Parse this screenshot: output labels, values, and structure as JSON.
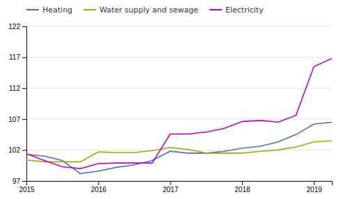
{
  "chart_data": {
    "type": "line",
    "categories": [
      "2015",
      null,
      null,
      null,
      "2016",
      null,
      null,
      null,
      "2017",
      null,
      null,
      null,
      "2018",
      null,
      null,
      null,
      "2019",
      null
    ],
    "series": [
      {
        "name": "Heating",
        "color": "#4472c4",
        "values": [
          101.3,
          101.0,
          100.3,
          98.2,
          98.6,
          99.2,
          99.6,
          100.3,
          101.8,
          101.5,
          101.5,
          101.8,
          102.3,
          102.6,
          103.3,
          104.5,
          106.2,
          106.5
        ]
      },
      {
        "name": "Water supply and sewage",
        "color": "#a0a800",
        "values": [
          100.4,
          100.1,
          100.1,
          100.1,
          101.7,
          101.6,
          101.6,
          101.9,
          102.4,
          102.1,
          101.5,
          101.5,
          101.5,
          101.8,
          102.0,
          102.5,
          103.3,
          103.5
        ]
      },
      {
        "name": "Electricity",
        "color": "#c000c0",
        "values": [
          101.4,
          100.3,
          99.3,
          99.0,
          99.8,
          99.9,
          99.9,
          99.9,
          104.6,
          104.6,
          104.9,
          105.5,
          106.6,
          106.8,
          106.5,
          107.6,
          115.5,
          116.8
        ]
      }
    ],
    "ylim": [
      97,
      122
    ],
    "yticks": [
      97,
      102,
      107,
      112,
      117,
      122
    ],
    "grid": true,
    "legend": "upper left"
  }
}
